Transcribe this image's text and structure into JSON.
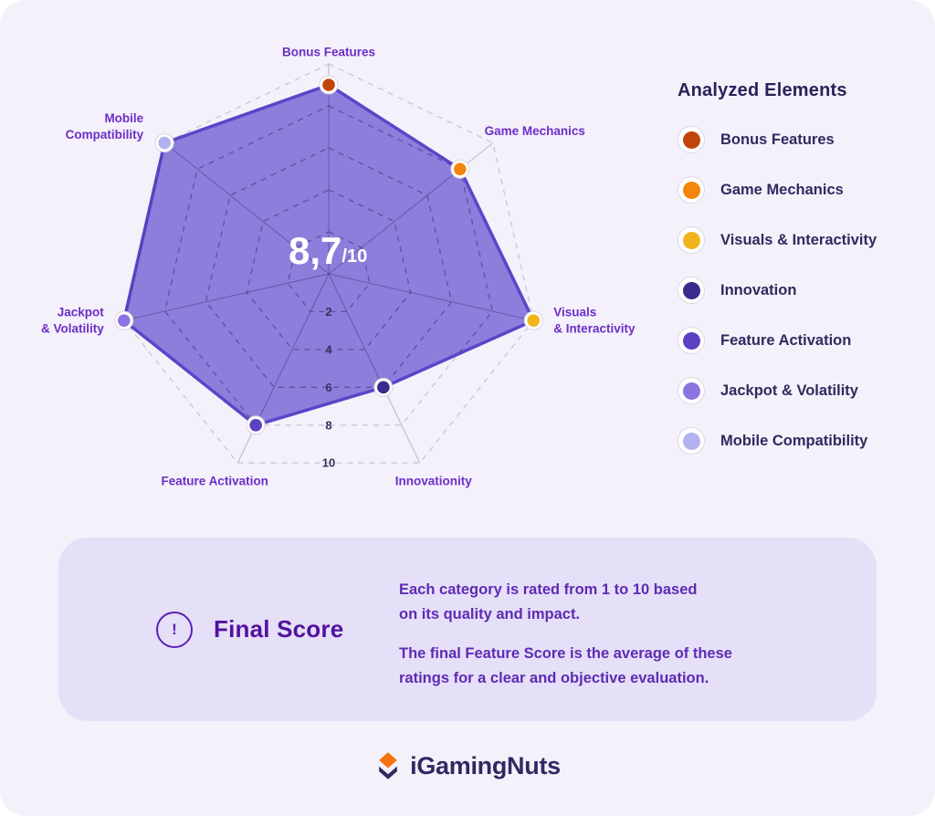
{
  "page": {
    "background": "#f4f1fb"
  },
  "chart_data": {
    "type": "radar",
    "max": 10,
    "ring_step": 2,
    "tick_values": [
      2,
      4,
      6,
      8,
      10
    ],
    "score": {
      "main": "8,7",
      "suffix": "/10"
    },
    "fill": "#6452ce",
    "fill_opacity": 0.72,
    "stroke": "#5b45c8",
    "grid_color": "#c8c6d2",
    "spoke_color": "#bab8c6",
    "axis_label_color": "#6d2ec7",
    "tick_color": "#37305b",
    "axes": [
      {
        "label_lines": [
          "Bonus Features"
        ],
        "value": 9,
        "color": "#c2440c"
      },
      {
        "label_lines": [
          "Game Mechanics"
        ],
        "value": 8,
        "color": "#f5850f"
      },
      {
        "label_lines": [
          "Visuals",
          "& Interactivity"
        ],
        "value": 10,
        "color": "#f0b41f"
      },
      {
        "label_lines": [
          "Innovationity"
        ],
        "value": 6,
        "color": "#3b2b8c"
      },
      {
        "label_lines": [
          "Feature Activation"
        ],
        "value": 8,
        "color": "#5d3fc2"
      },
      {
        "label_lines": [
          "Jackpot",
          "& Volatility"
        ],
        "value": 10,
        "color": "#8c74e0"
      },
      {
        "label_lines": [
          "Mobile",
          "Compatibility"
        ],
        "value": 10,
        "color": "#b2b2f0"
      }
    ]
  },
  "legend": {
    "title": "Analyzed Elements",
    "items": [
      {
        "label": "Bonus Features",
        "color": "#c2440c"
      },
      {
        "label": "Game Mechanics",
        "color": "#f5850f"
      },
      {
        "label": "Visuals & Interactivity",
        "color": "#f0b41f"
      },
      {
        "label": "Innovation",
        "color": "#3b2b8c"
      },
      {
        "label": "Feature Activation",
        "color": "#5d3fc2"
      },
      {
        "label": "Jackpot & Volatility",
        "color": "#8c74e0"
      },
      {
        "label": "Mobile Compatibility",
        "color": "#b2b2f0"
      }
    ]
  },
  "final_score": {
    "icon_glyph": "!",
    "title": "Final Score",
    "paragraph_lines": [
      [
        "Each category is rated from 1 to 10 based",
        "on its quality and impact."
      ],
      [
        "The final Feature Score is the average of these",
        "ratings for a clear and objective evaluation."
      ]
    ]
  },
  "footer": {
    "brand": "iGamingNuts"
  }
}
